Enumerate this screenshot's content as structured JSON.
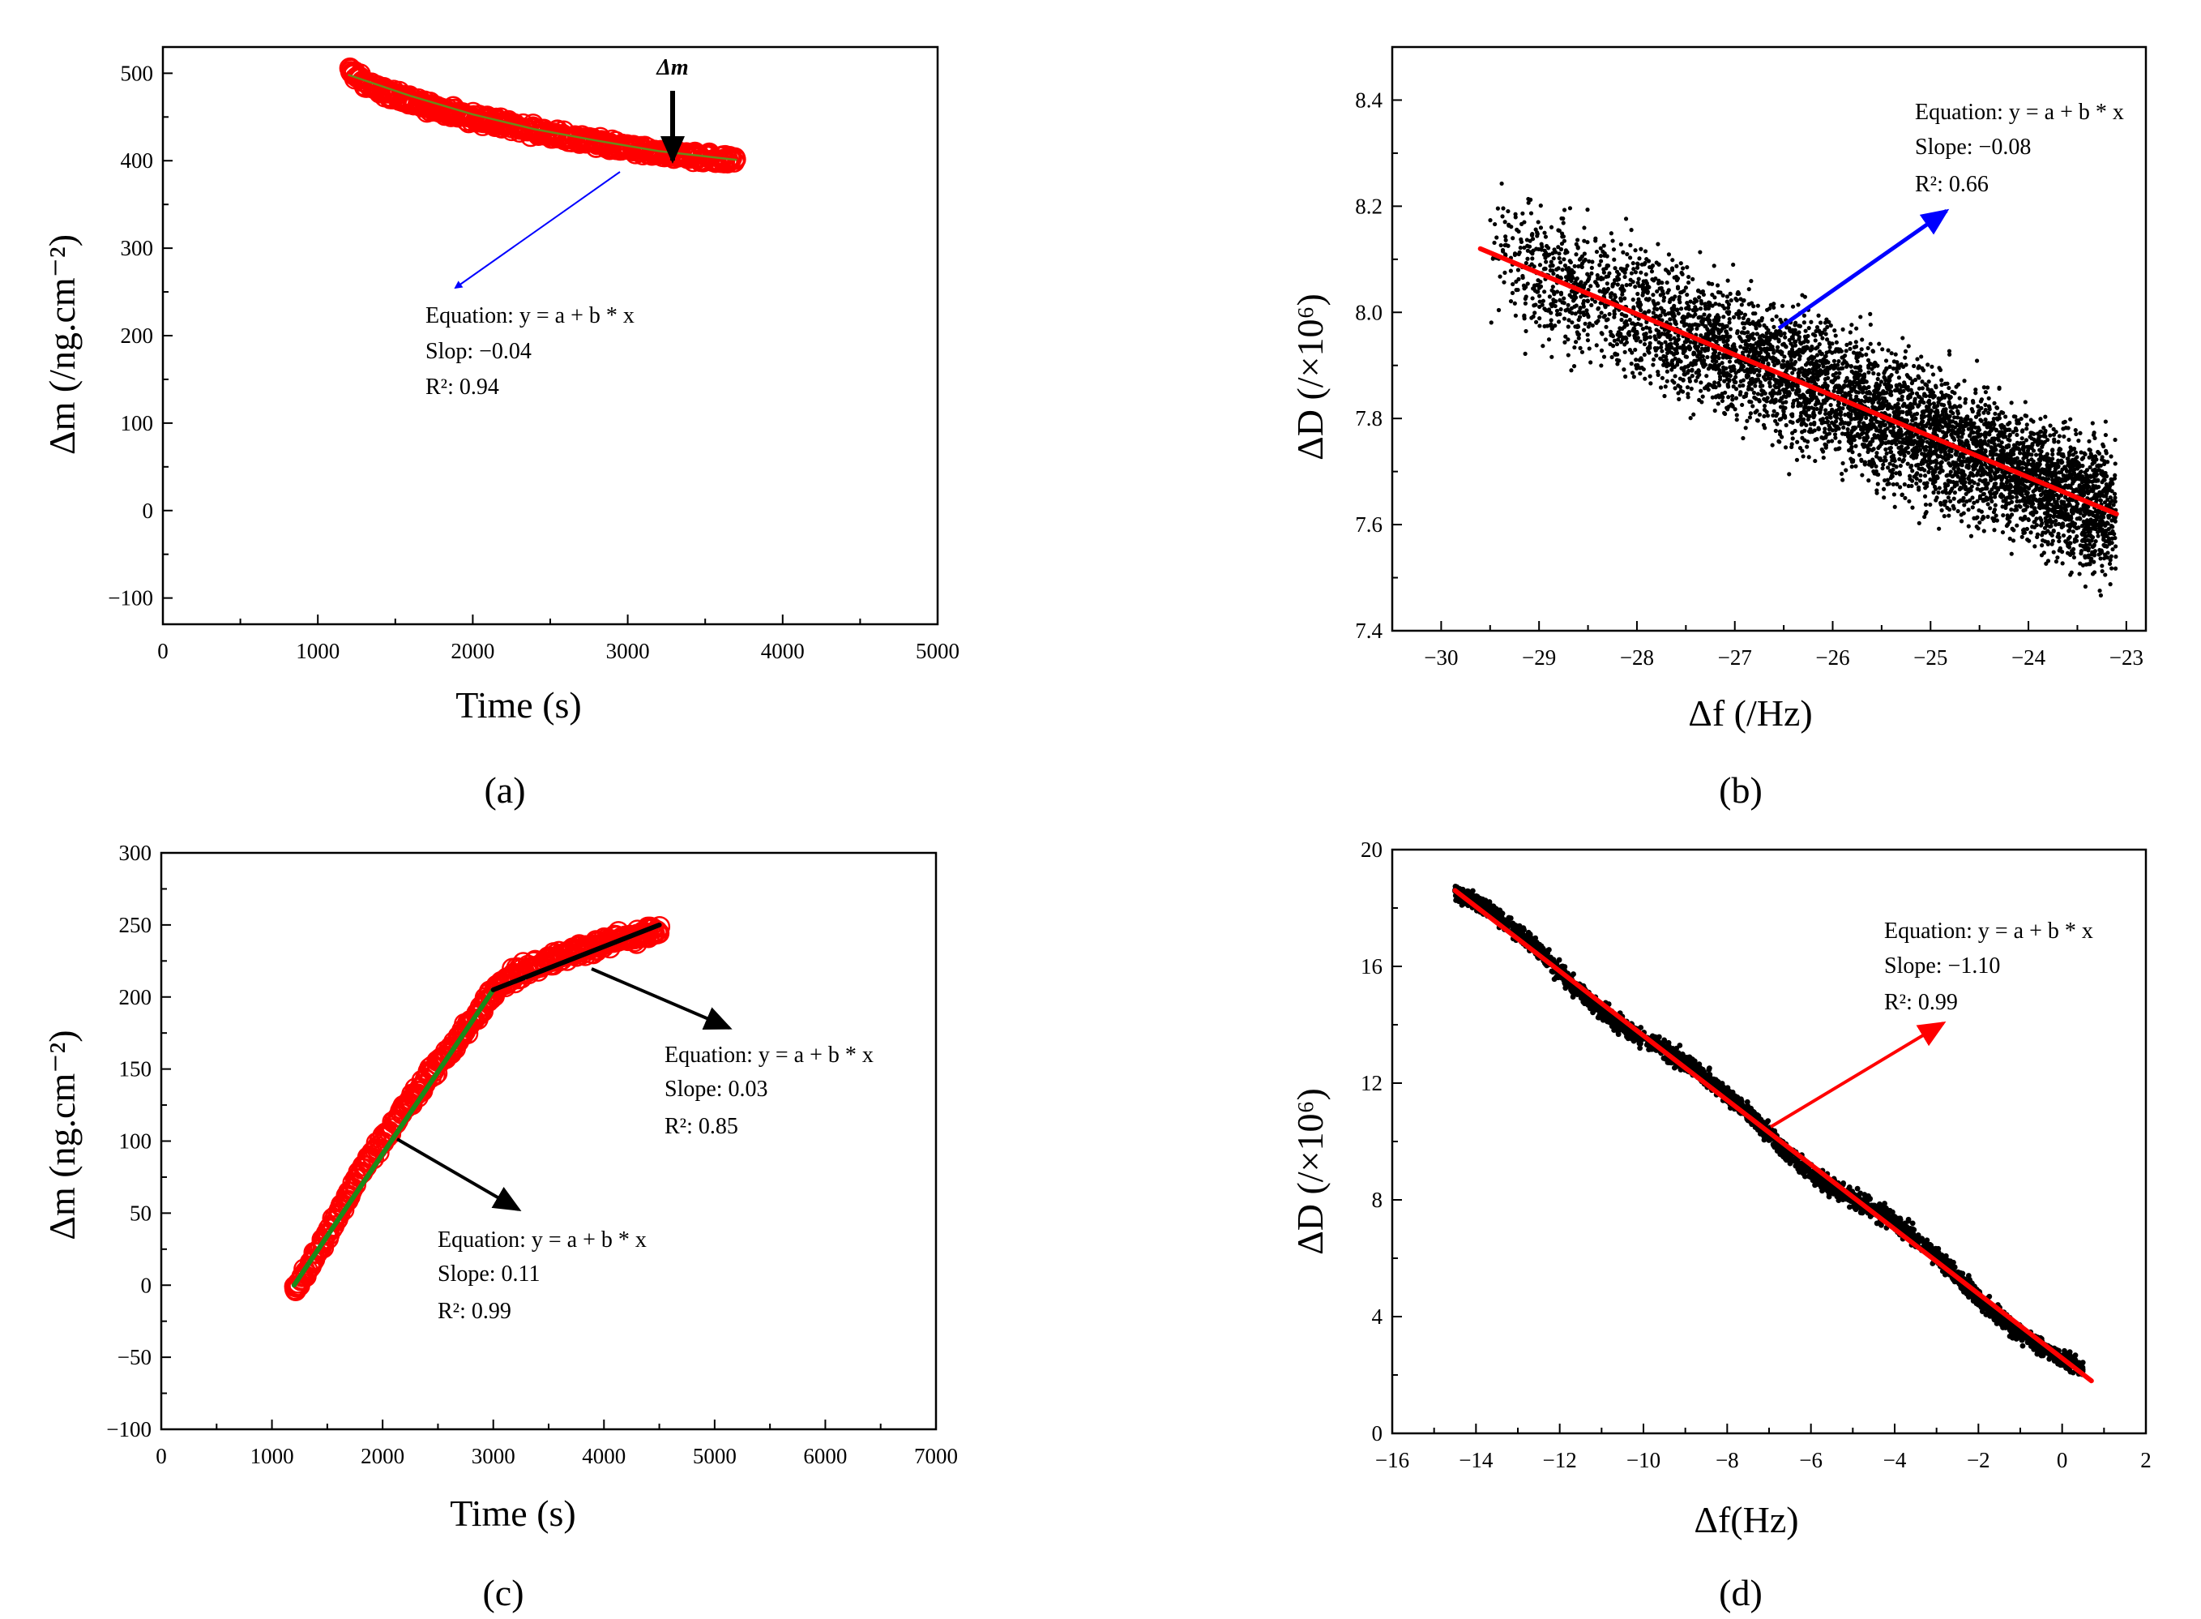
{
  "chart_data": [
    {
      "panel": "a",
      "caption": "(a)",
      "type": "scatter",
      "xlabel": "Time (s)",
      "ylabel": "Δm (/ng.cm⁻²)",
      "xlim": [
        0,
        5000
      ],
      "ylim": [
        -130,
        530
      ],
      "xticks": [
        0,
        1000,
        2000,
        3000,
        4000,
        5000
      ],
      "yticks": [
        -100,
        0,
        100,
        200,
        300,
        400,
        500
      ],
      "series": [
        {
          "name": "data",
          "style": "open-circle",
          "color": "#ff0000",
          "x": [
            1200,
            1300,
            1450,
            1600,
            1800,
            2000,
            2200,
            2400,
            2600,
            2800,
            3000,
            3200,
            3400,
            3600,
            3700
          ],
          "y": [
            505,
            488,
            478,
            468,
            458,
            449,
            441,
            434,
            427,
            421,
            414,
            408,
            405,
            402,
            401
          ]
        },
        {
          "name": "fit",
          "style": "line",
          "color": "#6a8a1a",
          "x": [
            1200,
            1600,
            2000,
            2400,
            2800,
            3200,
            3600,
            3700
          ],
          "y": [
            498,
            474,
            453,
            436,
            423,
            411,
            403,
            401
          ]
        }
      ],
      "marker_label": "Δm",
      "marker_x": 3280,
      "annotation_lines": [
        "Equation: y = a + b * x",
        "Slop: −0.04",
        "R²: 0.94"
      ]
    },
    {
      "panel": "b",
      "caption": "(b)",
      "type": "scatter",
      "xlabel": "Δf (/Hz)",
      "ylabel": "ΔD (/×10⁶)",
      "xlim": [
        -30.5,
        -22.8
      ],
      "ylim": [
        7.4,
        8.5
      ],
      "xticks": [
        -30,
        -29,
        -28,
        -27,
        -26,
        -25,
        -24,
        -23
      ],
      "yticks": [
        7.4,
        7.6,
        7.8,
        8.0,
        8.2,
        8.4
      ],
      "series": [
        {
          "name": "data",
          "style": "dot",
          "color": "#000000",
          "x_range": [
            -29.5,
            -23.1
          ],
          "point_count": 5500
        },
        {
          "name": "fit",
          "style": "line",
          "color": "#ff0000",
          "x": [
            -29.6,
            -23.1
          ],
          "y": [
            8.12,
            7.62
          ]
        }
      ],
      "annotation_lines": [
        "Equation: y = a + b * x",
        "Slope: −0.08",
        "R²: 0.66"
      ]
    },
    {
      "panel": "c",
      "caption": "(c)",
      "type": "scatter",
      "xlabel": "Time (s)",
      "ylabel": "Δm (ng.cm⁻²)",
      "xlim": [
        0,
        7000
      ],
      "ylim": [
        -100,
        300
      ],
      "xticks": [
        0,
        1000,
        2000,
        3000,
        4000,
        5000,
        6000,
        7000
      ],
      "yticks": [
        -100,
        -50,
        0,
        50,
        100,
        150,
        200,
        250,
        300
      ],
      "series": [
        {
          "name": "data",
          "style": "open-circle",
          "color": "#ff0000",
          "x": [
            1200,
            1300,
            1400,
            1500,
            1600,
            1700,
            1800,
            1900,
            2000,
            2100,
            2200,
            2300,
            2400,
            2500,
            2600,
            2700,
            2800,
            2900,
            3000,
            3200,
            3400,
            3600,
            3800,
            4000,
            4200,
            4400,
            4500
          ],
          "y": [
            -5,
            8,
            22,
            35,
            50,
            63,
            77,
            90,
            100,
            112,
            123,
            133,
            143,
            153,
            162,
            172,
            182,
            192,
            205,
            215,
            222,
            228,
            233,
            237,
            241,
            245,
            247
          ]
        },
        {
          "name": "fit 1",
          "style": "line",
          "color": "#1a8a1a",
          "x": [
            1200,
            3000
          ],
          "y": [
            0,
            205
          ]
        },
        {
          "name": "fit 2",
          "style": "line",
          "color": "#000000",
          "x": [
            3000,
            4500
          ],
          "y": [
            205,
            250
          ]
        }
      ],
      "annotations": [
        {
          "lines": [
            "Equation: y = a + b * x",
            "Slope: 0.03",
            "R²: 0.85"
          ]
        },
        {
          "lines": [
            "Equation: y = a + b * x",
            "Slope: 0.11",
            "R²: 0.99"
          ]
        }
      ]
    },
    {
      "panel": "d",
      "caption": "(d)",
      "type": "scatter",
      "xlabel": "Δf(Hz)",
      "ylabel": "ΔD (/×10⁶)",
      "xlim": [
        -16,
        2
      ],
      "ylim": [
        0,
        20
      ],
      "xticks": [
        -16,
        -14,
        -12,
        -10,
        -8,
        -6,
        -4,
        -2,
        0,
        2
      ],
      "yticks": [
        0,
        4,
        8,
        12,
        16,
        20
      ],
      "series": [
        {
          "name": "data",
          "style": "dot",
          "color": "#000000",
          "x_range": [
            -14.5,
            0.5
          ],
          "point_count": 2600
        },
        {
          "name": "fit",
          "style": "line",
          "color": "#ff0000",
          "x": [
            -14.5,
            0.7
          ],
          "y": [
            18.6,
            1.8
          ]
        }
      ],
      "annotation_lines": [
        "Equation: y = a + b * x",
        "Slope: −1.10",
        "R²: 0.99"
      ]
    }
  ]
}
